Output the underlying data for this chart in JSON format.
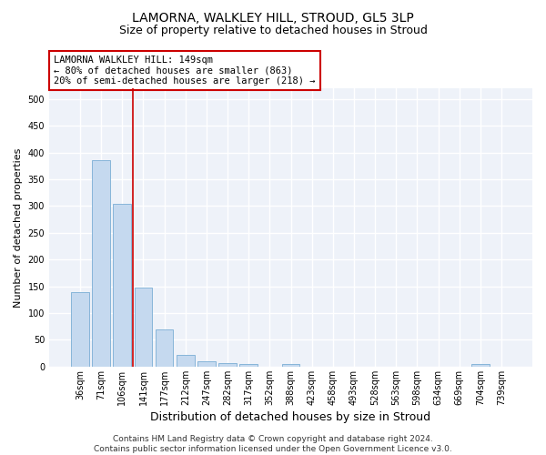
{
  "title1": "LAMORNA, WALKLEY HILL, STROUD, GL5 3LP",
  "title2": "Size of property relative to detached houses in Stroud",
  "xlabel": "Distribution of detached houses by size in Stroud",
  "ylabel": "Number of detached properties",
  "bar_color": "#c5d9ef",
  "bar_edge_color": "#7aadd4",
  "categories": [
    "36sqm",
    "71sqm",
    "106sqm",
    "141sqm",
    "177sqm",
    "212sqm",
    "247sqm",
    "282sqm",
    "317sqm",
    "352sqm",
    "388sqm",
    "423sqm",
    "458sqm",
    "493sqm",
    "528sqm",
    "563sqm",
    "598sqm",
    "634sqm",
    "669sqm",
    "704sqm",
    "739sqm"
  ],
  "values": [
    140,
    385,
    305,
    148,
    70,
    22,
    10,
    7,
    5,
    0,
    5,
    0,
    0,
    0,
    0,
    0,
    0,
    0,
    0,
    5,
    0
  ],
  "ylim": [
    0,
    520
  ],
  "yticks": [
    0,
    50,
    100,
    150,
    200,
    250,
    300,
    350,
    400,
    450,
    500
  ],
  "red_line_x": 2.5,
  "annotation_text": "LAMORNA WALKLEY HILL: 149sqm\n← 80% of detached houses are smaller (863)\n20% of semi-detached houses are larger (218) →",
  "annotation_box_color": "#cc0000",
  "footnote": "Contains HM Land Registry data © Crown copyright and database right 2024.\nContains public sector information licensed under the Open Government Licence v3.0.",
  "bg_color": "#eef2f9",
  "grid_color": "#ffffff",
  "title1_fontsize": 10,
  "title2_fontsize": 9,
  "xlabel_fontsize": 9,
  "ylabel_fontsize": 8,
  "annotation_fontsize": 7.5,
  "footnote_fontsize": 6.5,
  "tick_fontsize": 7
}
